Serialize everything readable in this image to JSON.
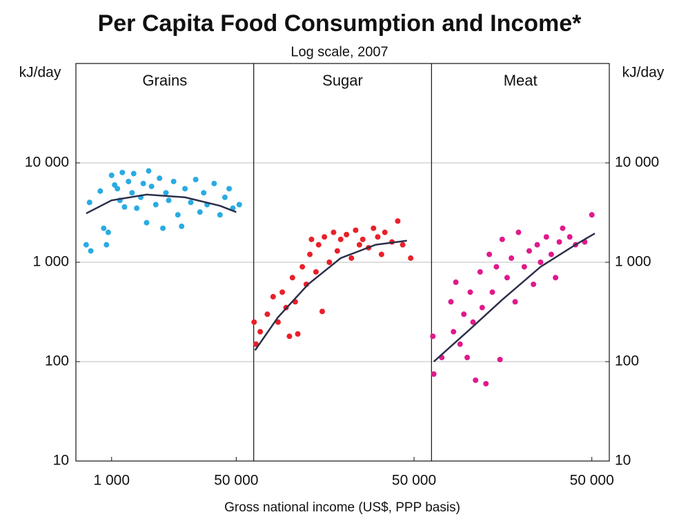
{
  "chart_data": {
    "type": "scatter",
    "title": "Per Capita Food Consumption and Income*",
    "subtitle": "Log scale, 2007",
    "y_label": "kJ/day",
    "y2_label": "kJ/day",
    "x_label": "Gross national income (US$, PPP basis)",
    "log_x": true,
    "log_y": true,
    "grid": true,
    "trend_color": "#2b2f4a",
    "ylim": [
      10,
      100000
    ],
    "yticks": [
      10,
      100,
      {
        "value": 1000,
        "label": "1 000"
      },
      {
        "value": 10000,
        "label": "10 000"
      }
    ],
    "y2lim": [
      10,
      100000
    ],
    "y2ticks": [
      10,
      100,
      {
        "value": 1000,
        "label": "1 000"
      },
      {
        "value": 10000,
        "label": "10 000"
      }
    ],
    "panels": [
      {
        "title": "Grains",
        "color": "#29abe2",
        "xlim": [
          326,
          86500
        ],
        "xticks": [
          {
            "value": 1000,
            "label": "1 000"
          },
          {
            "value": 50000,
            "label": "50 000"
          }
        ],
        "x": [
          500,
          450,
          520,
          700,
          780,
          850,
          900,
          1000,
          1100,
          1200,
          1300,
          1400,
          1500,
          1700,
          1900,
          2000,
          2200,
          2500,
          2700,
          3000,
          3200,
          3500,
          4000,
          4500,
          5000,
          5500,
          6000,
          7000,
          8000,
          9000,
          10000,
          12000,
          14000,
          16000,
          18000,
          20000,
          25000,
          30000,
          35000,
          40000,
          45000,
          55000
        ],
        "y": [
          4000,
          1500,
          1300,
          5200,
          2200,
          1500,
          2000,
          7500,
          6000,
          5500,
          4200,
          8000,
          3600,
          6500,
          5000,
          7800,
          3500,
          4500,
          6200,
          2500,
          8300,
          5800,
          3800,
          7000,
          2200,
          5000,
          4200,
          6500,
          3000,
          2300,
          5500,
          4000,
          6800,
          3200,
          5000,
          3800,
          6200,
          3000,
          4500,
          5500,
          3500,
          3800
        ],
        "trend": {
          "x": [
            450,
            1000,
            3000,
            10000,
            30000,
            50000
          ],
          "y": [
            3100,
            4200,
            4800,
            4500,
            3700,
            3200
          ]
        }
      },
      {
        "title": "Sugar",
        "color": "#e8202a",
        "xlim": [
          326,
          86500
        ],
        "xticks": [
          {
            "value": 50000,
            "label": "50 000"
          }
        ],
        "x": [
          330,
          350,
          400,
          500,
          600,
          700,
          800,
          900,
          1000,
          1100,
          1200,
          1300,
          1500,
          1700,
          1900,
          2000,
          2300,
          2500,
          2800,
          3000,
          3500,
          4000,
          4500,
          5000,
          6000,
          7000,
          8000,
          9000,
          10000,
          12000,
          14000,
          16000,
          18000,
          20000,
          25000,
          30000,
          35000,
          45000
        ],
        "y": [
          250,
          150,
          200,
          300,
          450,
          250,
          500,
          350,
          180,
          700,
          400,
          190,
          900,
          600,
          1200,
          1700,
          800,
          1500,
          320,
          1800,
          1000,
          2000,
          1300,
          1700,
          1900,
          1100,
          2100,
          1500,
          1700,
          1400,
          2200,
          1800,
          1200,
          2000,
          1600,
          2600,
          1500,
          1100
        ],
        "trend": {
          "x": [
            340,
            700,
            1800,
            5000,
            15000,
            40000
          ],
          "y": [
            130,
            280,
            600,
            1100,
            1500,
            1650
          ]
        }
      },
      {
        "title": "Meat",
        "color": "#e0198c",
        "xlim": [
          326,
          86500
        ],
        "xticks": [
          {
            "value": 50000,
            "label": "50 000"
          }
        ],
        "x": [
          340,
          350,
          450,
          600,
          650,
          700,
          800,
          900,
          1000,
          1100,
          1200,
          1300,
          1500,
          1600,
          1800,
          2000,
          2200,
          2500,
          2800,
          3000,
          3500,
          4000,
          4500,
          5000,
          6000,
          7000,
          8000,
          9000,
          10000,
          12000,
          14000,
          16000,
          18000,
          20000,
          25000,
          30000,
          40000,
          50000
        ],
        "y": [
          180,
          75,
          110,
          400,
          200,
          630,
          150,
          300,
          110,
          500,
          250,
          65,
          800,
          350,
          60,
          1200,
          500,
          900,
          105,
          1700,
          700,
          1100,
          400,
          2000,
          900,
          1300,
          600,
          1500,
          1000,
          1800,
          1200,
          700,
          1600,
          2200,
          1800,
          1500,
          1600,
          3000
        ],
        "trend": {
          "x": [
            350,
            1000,
            3000,
            10000,
            30000,
            55000
          ],
          "y": [
            100,
            200,
            420,
            900,
            1500,
            1950
          ]
        }
      }
    ]
  }
}
